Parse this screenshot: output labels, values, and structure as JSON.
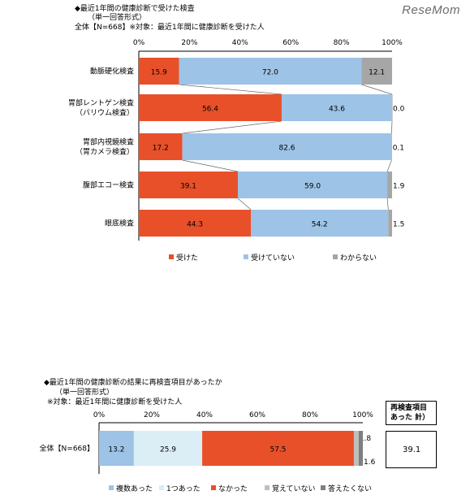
{
  "watermark": "ReseMom",
  "chart1": {
    "title": "◆最近1年間の健康診断で受けた検査",
    "subtitle": "（単一回答形式）",
    "base": "全体【N=668】※対象：最近1年間に健康診断を受けた人"
  },
  "chart2": {
    "title": "◆最近1年間の健康診断の結果に再検査項目があったか",
    "subtitle": "（単一回答形式）",
    "base": "※対象：最近1年間に健康診断を受けた人",
    "side_header_line1": "再検査項目",
    "side_header_line2": "あった 計）",
    "side_value": "39.1"
  },
  "chart_data": [
    {
      "type": "bar",
      "stacked": true,
      "orientation": "horizontal",
      "xlim": [
        0,
        100
      ],
      "x_ticks": [
        "0%",
        "20%",
        "40%",
        "60%",
        "80%",
        "100%"
      ],
      "categories": [
        "動脈硬化検査",
        "胃部レントゲン検査\n（バリウム検査）",
        "胃部内視鏡検査\n（胃カメラ検査）",
        "腹部エコー検査",
        "眼底検査"
      ],
      "series": [
        {
          "name": "受けた",
          "color": "#e8502a",
          "values": [
            15.9,
            56.4,
            17.2,
            39.1,
            44.3
          ]
        },
        {
          "name": "受けていない",
          "color": "#9dc3e6",
          "values": [
            72.0,
            43.6,
            82.6,
            59.0,
            54.2
          ]
        },
        {
          "name": "わからない",
          "color": "#a6a6a6",
          "values": [
            12.1,
            0.0,
            0.1,
            1.9,
            1.5
          ]
        }
      ],
      "legend_position": "bottom"
    },
    {
      "type": "bar",
      "stacked": true,
      "orientation": "horizontal",
      "xlim": [
        0,
        100
      ],
      "x_ticks": [
        "0%",
        "20%",
        "40%",
        "60%",
        "80%",
        "100%"
      ],
      "categories": [
        "全体【N=668】"
      ],
      "series": [
        {
          "name": "複数あった",
          "color": "#9dc3e6",
          "values": [
            13.2
          ]
        },
        {
          "name": "1つあった",
          "color": "#dbeef6",
          "values": [
            25.9
          ]
        },
        {
          "name": "なかった",
          "color": "#e8502a",
          "values": [
            57.5
          ]
        },
        {
          "name": "覚えていない",
          "color": "#bfbfbf",
          "values": [
            1.8
          ]
        },
        {
          "name": "答えたくない",
          "color": "#7f7f7f",
          "values": [
            1.6
          ]
        }
      ],
      "legend_position": "bottom"
    }
  ]
}
